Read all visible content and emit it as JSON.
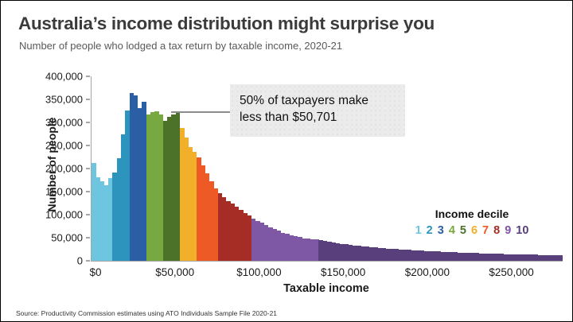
{
  "header": {
    "title": "Australia’s income distribution might surprise you",
    "subtitle": "Number of people who lodged a tax return by taxable income, 2020-21"
  },
  "source_note": "Source: Productivity Commission estimates using ATO Individuals Sample File 2020-21",
  "chart_data": {
    "type": "bar",
    "subtype": "histogram",
    "title": "Australia’s income distribution might surprise you",
    "subtitle": "Number of people who lodged a tax return by taxable income, 2020-21",
    "xlabel": "Taxable income",
    "ylabel": "Number of people",
    "xlim": [
      0,
      280000
    ],
    "ylim": [
      0,
      400000
    ],
    "grid": false,
    "bin_width_dollars": 2500,
    "x_tick_values": [
      0,
      50000,
      100000,
      150000,
      200000,
      250000
    ],
    "x_tick_labels": [
      "$0",
      "$50,000",
      "$100,000",
      "$150,000",
      "$200,000",
      "$250,000"
    ],
    "y_tick_values": [
      0,
      50000,
      100000,
      150000,
      200000,
      250000,
      300000,
      350000,
      400000
    ],
    "y_tick_labels": [
      "0",
      "50,000",
      "100,000",
      "150,000",
      "200,000",
      "250,000",
      "300,000",
      "350,000",
      "400,000"
    ],
    "annotation": {
      "line1": "50% of taxpayers make",
      "line2": "less than $50,701",
      "points_to_income": 50701
    },
    "legend": {
      "title": "Income decile",
      "entries": [
        "1",
        "2",
        "3",
        "4",
        "5",
        "6",
        "7",
        "8",
        "9",
        "10"
      ]
    },
    "decile_colors": [
      "#6ec5e0",
      "#2d94bd",
      "#2a5fa5",
      "#78a840",
      "#4b7228",
      "#f2b02a",
      "#ed5a25",
      "#a62c26",
      "#7e57a5",
      "#5a3f7d"
    ],
    "decile_bin_counts": [
      5,
      4,
      4,
      4,
      4,
      4,
      5,
      8,
      16,
      58
    ],
    "values": [
      212000,
      181000,
      172000,
      164000,
      179000,
      191000,
      222000,
      274000,
      326000,
      363000,
      358000,
      331000,
      344000,
      318000,
      322000,
      324000,
      318000,
      304000,
      312000,
      318000,
      320000,
      288000,
      268000,
      247000,
      236000,
      225000,
      207000,
      190000,
      173000,
      157000,
      147000,
      138000,
      130000,
      124000,
      118000,
      110000,
      104000,
      98000,
      92000,
      87000,
      82000,
      77000,
      73000,
      69000,
      65000,
      61000,
      58000,
      55000,
      53000,
      51000,
      49000,
      48000,
      47000,
      46000,
      45000,
      43000,
      41500,
      40000,
      38500,
      37000,
      36000,
      34500,
      33500,
      32500,
      31500,
      30500,
      29500,
      29000,
      28000,
      27500,
      26500,
      26000,
      25500,
      24500,
      24000,
      23500,
      23000,
      22500,
      22000,
      21500,
      21000,
      20500,
      20000,
      19500,
      19000,
      18700,
      18300,
      18000,
      17600,
      17300,
      17000,
      16600,
      16300,
      16000,
      15700,
      15400,
      15100,
      14800,
      14600,
      14300,
      14100,
      13800,
      13600,
      13400,
      13200,
      13000,
      12800,
      12600,
      12400,
      12300,
      12100,
      12000
    ]
  }
}
